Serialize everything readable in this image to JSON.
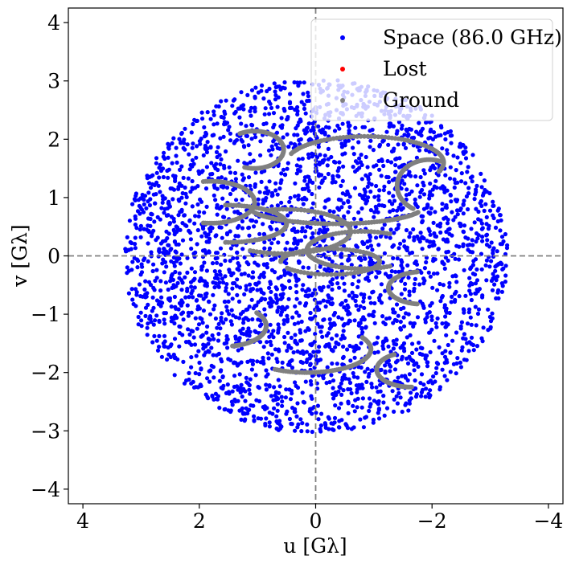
{
  "chart_data": {
    "type": "scatter",
    "title": "",
    "xlabel": "u [Gλ]",
    "ylabel": "v [Gλ]",
    "xlim": [
      4.25,
      -4.25
    ],
    "ylim": [
      -4.25,
      4.25
    ],
    "xticks": [
      4,
      2,
      0,
      -2,
      -4
    ],
    "yticks": [
      4,
      3,
      2,
      1,
      0,
      -1,
      -2,
      -3,
      -4
    ],
    "xtick_labels": [
      "4",
      "2",
      "0",
      "−2",
      "−4"
    ],
    "ytick_labels": [
      "4",
      "3",
      "2",
      "1",
      "0",
      "−1",
      "−2",
      "−3",
      "−4"
    ],
    "reference_lines": {
      "x": 0,
      "y": 0,
      "style": "dashed",
      "color": "#808080"
    },
    "grid": false,
    "legend_position": "top-right",
    "series": [
      {
        "name": "Space (86.0 GHz)",
        "color": "#0000ff",
        "pattern": "approximate scatter filling an elliptical disk",
        "region": {
          "u_range": [
            -3.3,
            3.3
          ],
          "v_range": [
            -3.05,
            3.05
          ],
          "shape": "ellipse"
        },
        "n_points": 3200
      },
      {
        "name": "Lost",
        "color": "#ff0000",
        "n_points": 0
      },
      {
        "name": "Ground",
        "color": "#808080",
        "pattern": "elliptical arc tracks, approximate",
        "arcs": [
          {
            "cu": 1.05,
            "cv": 1.82,
            "a": 0.5,
            "b": 0.32,
            "t0": 60,
            "t1": 290
          },
          {
            "cu": 1.8,
            "cv": 0.92,
            "a": 0.75,
            "b": 0.36,
            "t0": 80,
            "t1": 280
          },
          {
            "cu": 1.55,
            "cv": 0.55,
            "a": 1.05,
            "b": 0.32,
            "t0": 90,
            "t1": 270
          },
          {
            "cu": 0.55,
            "cv": 0.42,
            "a": 1.15,
            "b": 0.38,
            "t0": 80,
            "t1": 300
          },
          {
            "cu": -0.8,
            "cv": 0.1,
            "a": 0.95,
            "b": 0.32,
            "t0": -120,
            "t1": 120
          },
          {
            "cu": -0.25,
            "cv": -0.1,
            "a": 0.85,
            "b": 0.22,
            "t0": 0,
            "t1": 330
          },
          {
            "cu": -0.85,
            "cv": 1.6,
            "a": 1.35,
            "b": 0.45,
            "t0": 20,
            "t1": 200
          },
          {
            "cu": -1.95,
            "cv": 1.2,
            "a": 0.55,
            "b": 0.45,
            "t0": -60,
            "t1": 110
          },
          {
            "cu": -1.85,
            "cv": -0.55,
            "a": 0.6,
            "b": 0.28,
            "t0": -80,
            "t1": 80
          },
          {
            "cu": -1.65,
            "cv": -1.95,
            "a": 0.6,
            "b": 0.3,
            "t0": -90,
            "t1": 60
          },
          {
            "cu": 0.15,
            "cv": -1.6,
            "a": 1.1,
            "b": 0.4,
            "t0": 150,
            "t1": 300
          },
          {
            "cu": 1.55,
            "cv": -1.2,
            "a": 0.7,
            "b": 0.35,
            "t0": 140,
            "t1": 260
          },
          {
            "cu": -0.35,
            "cv": 0.85,
            "a": 1.5,
            "b": 0.3,
            "t0": 200,
            "t1": 340
          }
        ]
      }
    ]
  }
}
